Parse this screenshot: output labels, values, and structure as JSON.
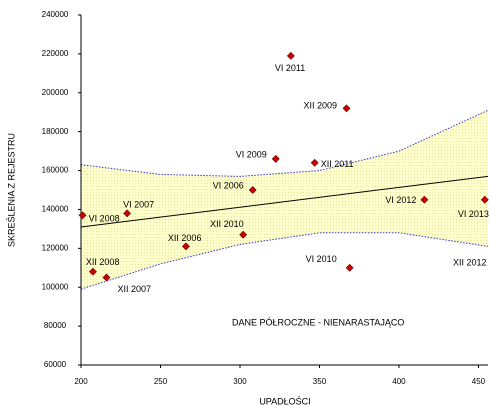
{
  "chart_data": {
    "type": "scatter",
    "x_label": "UPADŁOŚCI",
    "y_label": "SKREŚLENIA Z REJESTRU",
    "xlim": [
      200,
      456
    ],
    "ylim": [
      60000,
      240000
    ],
    "xticks": [
      200,
      250,
      300,
      350,
      400,
      450
    ],
    "yticks": [
      60000,
      80000,
      100000,
      120000,
      140000,
      160000,
      180000,
      200000,
      220000,
      240000
    ],
    "series": [
      {
        "color": "#cc0000",
        "labels": [
          "VI 2008",
          "VI 2007",
          "XII 2008",
          "XII 2007",
          "XII 2006",
          "VI 2006",
          "XII 2010",
          "VI 2009",
          "VI 2011",
          "XII 2009",
          "XII 2011",
          "VI 2010",
          "VI 2012",
          "VI 2013"
        ],
        "x": [
          201,
          229,
          207.5,
          216,
          266,
          308,
          302,
          322.5,
          332,
          367,
          347,
          369,
          416,
          454
        ],
        "values": [
          137000,
          138000,
          108000,
          105000,
          121000,
          150000,
          127000,
          166000,
          219000,
          192000,
          164000,
          110000,
          145000,
          145000
        ]
      }
    ],
    "trend": {
      "color": "#000000",
      "x": [
        200,
        456
      ],
      "values": [
        131000,
        157000
      ]
    },
    "band": {
      "color": "#3333cc",
      "fill": "#ffffcc",
      "x": [
        200,
        250,
        300,
        350,
        400,
        456
      ],
      "upper": [
        163000,
        158000,
        157000,
        160000,
        170000,
        191000
      ],
      "lower": [
        99000,
        112000,
        122000,
        128000,
        128000,
        121000
      ]
    },
    "annotations": [
      "XII 2012",
      "DANE PÓŁROCZNE - NIENARASTAJĄCO"
    ]
  }
}
